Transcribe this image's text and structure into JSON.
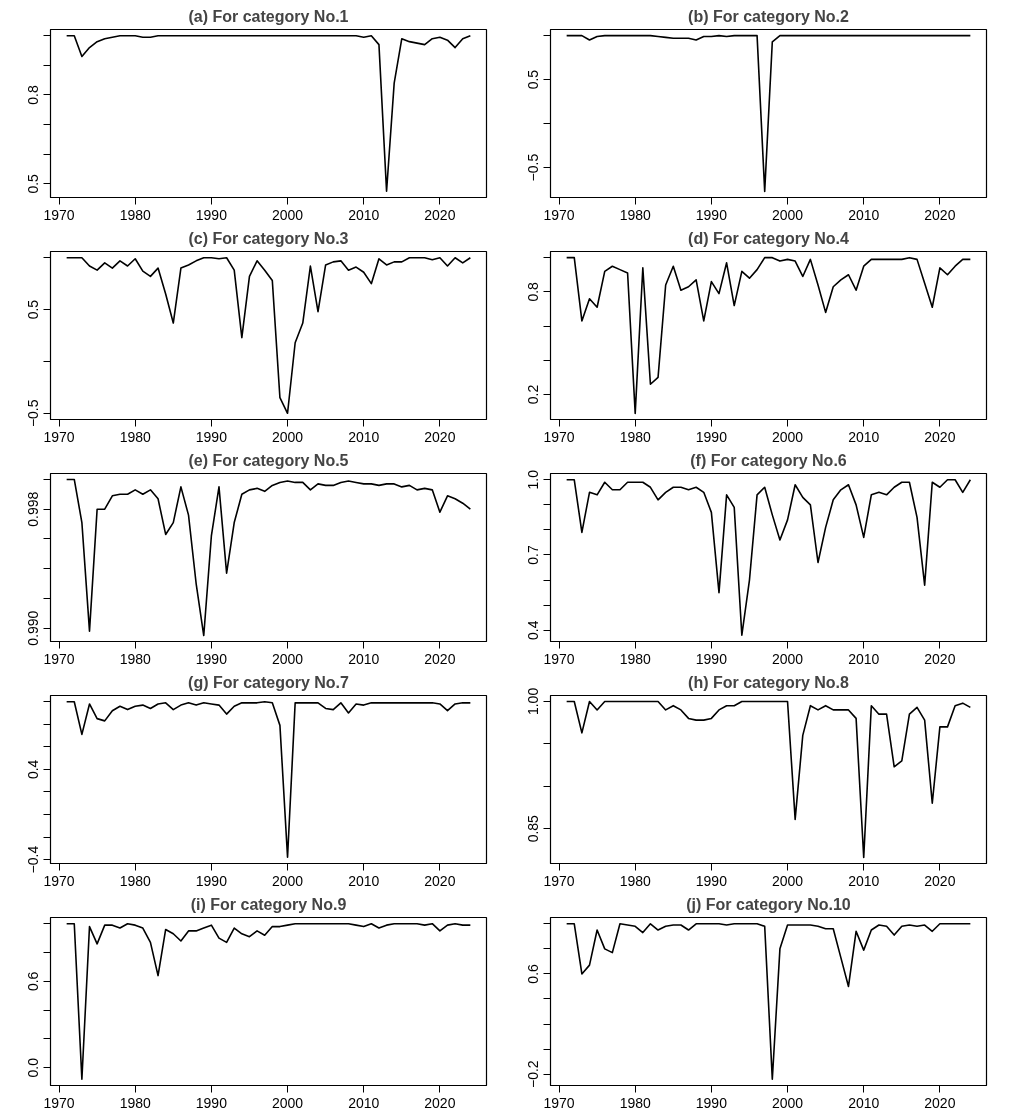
{
  "chart_data": [
    {
      "type": "line",
      "title": "(a) For category No.1",
      "xlim": [
        1968.88,
        2026.12
      ],
      "xticks": [
        1970,
        1980,
        1990,
        2000,
        2010,
        2020
      ],
      "ylim": [
        0.454,
        1.021
      ],
      "yticks": [
        0.5,
        {
          "value": 0.6,
          "label": null
        },
        {
          "value": 0.7,
          "label": null
        },
        0.8,
        {
          "value": 0.9,
          "label": null
        },
        {
          "value": 1.0,
          "label": null
        }
      ],
      "grid": false,
      "marker": "none",
      "line_style": "solid",
      "x": [
        1971,
        1972,
        1973,
        1974,
        1975,
        1976,
        1977,
        1978,
        1979,
        1980,
        1981,
        1982,
        1983,
        1984,
        1985,
        1986,
        1987,
        1988,
        1989,
        1990,
        1991,
        1992,
        1993,
        1994,
        1995,
        1996,
        1997,
        1998,
        1999,
        2000,
        2001,
        2002,
        2003,
        2004,
        2005,
        2006,
        2007,
        2008,
        2009,
        2010,
        2011,
        2012,
        2013,
        2014,
        2015,
        2016,
        2017,
        2018,
        2019,
        2020,
        2021,
        2022,
        2023,
        2024
      ],
      "series": [
        {
          "color": "#000000",
          "values": [
            1.0,
            1.0,
            0.93,
            0.96,
            0.98,
            0.99,
            0.995,
            1.0,
            1.0,
            1.0,
            0.995,
            0.995,
            1.0,
            1.0,
            1.0,
            1.0,
            1.0,
            1.0,
            1.0,
            1.0,
            1.0,
            1.0,
            1.0,
            1.0,
            1.0,
            1.0,
            1.0,
            1.0,
            1.0,
            1.0,
            1.0,
            1.0,
            1.0,
            1.0,
            1.0,
            1.0,
            1.0,
            1.0,
            1.0,
            0.995,
            1.0,
            0.97,
            0.475,
            0.84,
            0.99,
            0.98,
            0.975,
            0.97,
            0.99,
            0.995,
            0.985,
            0.96,
            0.99,
            1.0
          ]
        }
      ]
    },
    {
      "type": "line",
      "title": "(b) For category No.2",
      "xlim": [
        1968.88,
        2026.12
      ],
      "xticks": [
        1970,
        1980,
        1990,
        2000,
        2010,
        2020
      ],
      "ylim": [
        -0.84,
        1.07
      ],
      "yticks": [
        {
          "value": -0.5,
          "label": "−0.5"
        },
        {
          "value": 0,
          "label": null
        },
        0.5,
        {
          "value": 1.0,
          "label": null
        }
      ],
      "grid": false,
      "marker": "none",
      "line_style": "solid",
      "x": [
        1971,
        1972,
        1973,
        1974,
        1975,
        1976,
        1977,
        1978,
        1979,
        1980,
        1981,
        1982,
        1983,
        1984,
        1985,
        1986,
        1987,
        1988,
        1989,
        1990,
        1991,
        1992,
        1993,
        1994,
        1995,
        1996,
        1997,
        1998,
        1999,
        2000,
        2001,
        2002,
        2003,
        2004,
        2005,
        2006,
        2007,
        2008,
        2009,
        2010,
        2011,
        2012,
        2013,
        2014,
        2015,
        2016,
        2017,
        2018,
        2019,
        2020,
        2021,
        2022,
        2023,
        2024
      ],
      "series": [
        {
          "color": "#000000",
          "values": [
            1.0,
            1.0,
            1.0,
            0.95,
            0.99,
            1.0,
            1.0,
            1.0,
            1.0,
            1.0,
            1.0,
            1.0,
            0.99,
            0.98,
            0.97,
            0.97,
            0.97,
            0.95,
            0.99,
            0.99,
            1.0,
            0.99,
            1.0,
            1.0,
            1.0,
            1.0,
            -0.77,
            0.93,
            1.0,
            1.0,
            1.0,
            1.0,
            1.0,
            1.0,
            1.0,
            1.0,
            1.0,
            1.0,
            1.0,
            1.0,
            1.0,
            1.0,
            1.0,
            1.0,
            1.0,
            1.0,
            1.0,
            1.0,
            1.0,
            1.0,
            1.0,
            1.0,
            1.0,
            1.0
          ]
        }
      ]
    },
    {
      "type": "line",
      "title": "(c) For category No.3",
      "xlim": [
        1968.88,
        2026.12
      ],
      "xticks": [
        1970,
        1980,
        1990,
        2000,
        2010,
        2020
      ],
      "ylim": [
        -0.56,
        1.06
      ],
      "yticks": [
        {
          "value": -0.5,
          "label": "−0.5"
        },
        {
          "value": 0,
          "label": null
        },
        0.5,
        {
          "value": 1.0,
          "label": null
        }
      ],
      "grid": false,
      "marker": "none",
      "line_style": "solid",
      "x": [
        1971,
        1972,
        1973,
        1974,
        1975,
        1976,
        1977,
        1978,
        1979,
        1980,
        1981,
        1982,
        1983,
        1984,
        1985,
        1986,
        1987,
        1988,
        1989,
        1990,
        1991,
        1992,
        1993,
        1994,
        1995,
        1996,
        1997,
        1998,
        1999,
        2000,
        2001,
        2002,
        2003,
        2004,
        2005,
        2006,
        2007,
        2008,
        2009,
        2010,
        2011,
        2012,
        2013,
        2014,
        2015,
        2016,
        2017,
        2018,
        2019,
        2020,
        2021,
        2022,
        2023,
        2024
      ],
      "series": [
        {
          "color": "#000000",
          "values": [
            1.0,
            1.0,
            1.0,
            0.92,
            0.88,
            0.95,
            0.9,
            0.97,
            0.92,
            0.99,
            0.87,
            0.82,
            0.9,
            0.65,
            0.37,
            0.9,
            0.93,
            0.97,
            1.0,
            1.0,
            0.99,
            1.0,
            0.88,
            0.23,
            0.82,
            0.97,
            0.88,
            0.78,
            -0.35,
            -0.5,
            0.18,
            0.37,
            0.92,
            0.48,
            0.93,
            0.96,
            0.97,
            0.88,
            0.91,
            0.86,
            0.75,
            0.99,
            0.93,
            0.96,
            0.96,
            1.0,
            1.0,
            1.0,
            0.98,
            1.0,
            0.92,
            1.0,
            0.95,
            1.0
          ]
        }
      ]
    },
    {
      "type": "line",
      "title": "(d) For category No.4",
      "xlim": [
        1968.88,
        2026.12
      ],
      "xticks": [
        1970,
        1980,
        1990,
        2000,
        2010,
        2020
      ],
      "ylim": [
        0.054,
        1.036
      ],
      "yticks": [
        0.2,
        {
          "value": 0.4,
          "label": null
        },
        {
          "value": 0.6,
          "label": null
        },
        0.8,
        {
          "value": 1.0,
          "label": null
        }
      ],
      "grid": false,
      "marker": "none",
      "line_style": "solid",
      "x": [
        1971,
        1972,
        1973,
        1974,
        1975,
        1976,
        1977,
        1978,
        1979,
        1980,
        1981,
        1982,
        1983,
        1984,
        1985,
        1986,
        1987,
        1988,
        1989,
        1990,
        1991,
        1992,
        1993,
        1994,
        1995,
        1996,
        1997,
        1998,
        1999,
        2000,
        2001,
        2002,
        2003,
        2004,
        2005,
        2006,
        2007,
        2008,
        2009,
        2010,
        2011,
        2012,
        2013,
        2014,
        2015,
        2016,
        2017,
        2018,
        2019,
        2020,
        2021,
        2022,
        2023,
        2024
      ],
      "series": [
        {
          "color": "#000000",
          "values": [
            1.0,
            1.0,
            0.63,
            0.76,
            0.71,
            0.92,
            0.95,
            0.93,
            0.91,
            0.09,
            0.94,
            0.26,
            0.3,
            0.84,
            0.95,
            0.81,
            0.83,
            0.87,
            0.63,
            0.86,
            0.79,
            0.97,
            0.72,
            0.92,
            0.88,
            0.93,
            1.0,
            1.0,
            0.98,
            0.99,
            0.98,
            0.89,
            0.99,
            0.84,
            0.68,
            0.83,
            0.87,
            0.9,
            0.81,
            0.95,
            0.99,
            0.99,
            0.99,
            0.99,
            0.99,
            1.0,
            0.99,
            0.85,
            0.71,
            0.94,
            0.9,
            0.95,
            0.99,
            0.99
          ]
        }
      ]
    },
    {
      "type": "line",
      "title": "(e) For category No.5",
      "xlim": [
        1968.88,
        2026.12
      ],
      "xticks": [
        1970,
        1980,
        1990,
        2000,
        2010,
        2020
      ],
      "ylim": [
        0.9891,
        1.0004
      ],
      "yticks": [
        {
          "value": 0.99,
          "label": "0.990"
        },
        {
          "value": 0.992,
          "label": null
        },
        {
          "value": 0.994,
          "label": null
        },
        {
          "value": 0.996,
          "label": null
        },
        0.998,
        {
          "value": 1.0,
          "label": null
        }
      ],
      "grid": false,
      "marker": "none",
      "line_style": "solid",
      "x": [
        1971,
        1972,
        1973,
        1974,
        1975,
        1976,
        1977,
        1978,
        1979,
        1980,
        1981,
        1982,
        1983,
        1984,
        1985,
        1986,
        1987,
        1988,
        1989,
        1990,
        1991,
        1992,
        1993,
        1994,
        1995,
        1996,
        1997,
        1998,
        1999,
        2000,
        2001,
        2002,
        2003,
        2004,
        2005,
        2006,
        2007,
        2008,
        2009,
        2010,
        2011,
        2012,
        2013,
        2014,
        2015,
        2016,
        2017,
        2018,
        2019,
        2020,
        2021,
        2022,
        2023,
        2024
      ],
      "series": [
        {
          "color": "#000000",
          "values": [
            1.0,
            1.0,
            0.9971,
            0.9898,
            0.998,
            0.998,
            0.9989,
            0.999,
            0.999,
            0.9993,
            0.999,
            0.9993,
            0.9987,
            0.9963,
            0.9971,
            0.9995,
            0.9976,
            0.993,
            0.9895,
            0.9962,
            0.9995,
            0.9937,
            0.9971,
            0.999,
            0.9993,
            0.9994,
            0.9992,
            0.9996,
            0.9998,
            0.9999,
            0.9998,
            0.9998,
            0.9993,
            0.9997,
            0.9996,
            0.9996,
            0.9998,
            0.9999,
            0.9998,
            0.9997,
            0.9997,
            0.9996,
            0.9997,
            0.9997,
            0.9995,
            0.9996,
            0.9993,
            0.9994,
            0.9993,
            0.9978,
            0.9989,
            0.9987,
            0.9984,
            0.998
          ]
        }
      ]
    },
    {
      "type": "line",
      "title": "(f) For category No.6",
      "xlim": [
        1968.88,
        2026.12
      ],
      "xticks": [
        1970,
        1980,
        1990,
        2000,
        2010,
        2020
      ],
      "ylim": [
        0.355,
        1.025
      ],
      "yticks": [
        0.4,
        {
          "value": 0.5,
          "label": null
        },
        {
          "value": 0.6,
          "label": null
        },
        0.7,
        {
          "value": 0.8,
          "label": null
        },
        {
          "value": 0.9,
          "label": null
        },
        {
          "value": 1.0,
          "label": "1.0"
        }
      ],
      "grid": false,
      "marker": "none",
      "line_style": "solid",
      "x": [
        1971,
        1972,
        1973,
        1974,
        1975,
        1976,
        1977,
        1978,
        1979,
        1980,
        1981,
        1982,
        1983,
        1984,
        1985,
        1986,
        1987,
        1988,
        1989,
        1990,
        1991,
        1992,
        1993,
        1994,
        1995,
        1996,
        1997,
        1998,
        1999,
        2000,
        2001,
        2002,
        2003,
        2004,
        2005,
        2006,
        2007,
        2008,
        2009,
        2010,
        2011,
        2012,
        2013,
        2014,
        2015,
        2016,
        2017,
        2018,
        2019,
        2020,
        2021,
        2022,
        2023,
        2024
      ],
      "series": [
        {
          "color": "#000000",
          "values": [
            1.0,
            1.0,
            0.79,
            0.95,
            0.94,
            0.99,
            0.96,
            0.96,
            0.99,
            0.99,
            0.99,
            0.97,
            0.92,
            0.95,
            0.97,
            0.97,
            0.96,
            0.97,
            0.95,
            0.87,
            0.55,
            0.94,
            0.89,
            0.38,
            0.6,
            0.94,
            0.97,
            0.86,
            0.76,
            0.84,
            0.98,
            0.93,
            0.9,
            0.67,
            0.81,
            0.92,
            0.96,
            0.98,
            0.9,
            0.77,
            0.94,
            0.95,
            0.94,
            0.97,
            0.99,
            0.99,
            0.85,
            0.58,
            0.99,
            0.97,
            1.0,
            1.0,
            0.95,
            1.0
          ]
        }
      ]
    },
    {
      "type": "line",
      "title": "(g) For category No.7",
      "xlim": [
        1968.88,
        2026.12
      ],
      "xticks": [
        1970,
        1980,
        1990,
        2000,
        2010,
        2020
      ],
      "ylim": [
        -0.435,
        1.055
      ],
      "yticks": [
        {
          "value": -0.4,
          "label": "−0.4"
        },
        {
          "value": -0.2,
          "label": null
        },
        {
          "value": 0,
          "label": null
        },
        {
          "value": 0.2,
          "label": null
        },
        0.4,
        {
          "value": 0.6,
          "label": null
        },
        {
          "value": 0.8,
          "label": null
        },
        {
          "value": 1.0,
          "label": null
        }
      ],
      "grid": false,
      "marker": "none",
      "line_style": "solid",
      "x": [
        1971,
        1972,
        1973,
        1974,
        1975,
        1976,
        1977,
        1978,
        1979,
        1980,
        1981,
        1982,
        1983,
        1984,
        1985,
        1986,
        1987,
        1988,
        1989,
        1990,
        1991,
        1992,
        1993,
        1994,
        1995,
        1996,
        1997,
        1998,
        1999,
        2000,
        2001,
        2002,
        2003,
        2004,
        2005,
        2006,
        2007,
        2008,
        2009,
        2010,
        2011,
        2012,
        2013,
        2014,
        2015,
        2016,
        2017,
        2018,
        2019,
        2020,
        2021,
        2022,
        2023,
        2024
      ],
      "series": [
        {
          "color": "#000000",
          "values": [
            1.0,
            1.0,
            0.71,
            0.98,
            0.85,
            0.83,
            0.92,
            0.96,
            0.93,
            0.96,
            0.97,
            0.94,
            0.98,
            0.99,
            0.93,
            0.97,
            0.99,
            0.97,
            0.99,
            0.98,
            0.97,
            0.89,
            0.96,
            0.99,
            0.99,
            0.99,
            1.0,
            0.99,
            0.79,
            -0.38,
            0.99,
            0.99,
            0.99,
            0.99,
            0.94,
            0.93,
            0.99,
            0.9,
            0.98,
            0.97,
            0.99,
            0.99,
            0.99,
            0.99,
            0.99,
            0.99,
            0.99,
            0.99,
            0.99,
            0.98,
            0.92,
            0.98,
            0.99,
            0.99
          ]
        }
      ]
    },
    {
      "type": "line",
      "title": "(h) For category No.8",
      "xlim": [
        1968.88,
        2026.12
      ],
      "xticks": [
        1970,
        1980,
        1990,
        2000,
        2010,
        2020
      ],
      "ylim": [
        0.809,
        1.007
      ],
      "yticks": [
        0.85,
        {
          "value": 0.9,
          "label": null
        },
        {
          "value": 0.95,
          "label": null
        },
        {
          "value": 1.0,
          "label": "1.00"
        }
      ],
      "grid": false,
      "marker": "none",
      "line_style": "solid",
      "x": [
        1971,
        1972,
        1973,
        1974,
        1975,
        1976,
        1977,
        1978,
        1979,
        1980,
        1981,
        1982,
        1983,
        1984,
        1985,
        1986,
        1987,
        1988,
        1989,
        1990,
        1991,
        1992,
        1993,
        1994,
        1995,
        1996,
        1997,
        1998,
        1999,
        2000,
        2001,
        2002,
        2003,
        2004,
        2005,
        2006,
        2007,
        2008,
        2009,
        2010,
        2011,
        2012,
        2013,
        2014,
        2015,
        2016,
        2017,
        2018,
        2019,
        2020,
        2021,
        2022,
        2023,
        2024
      ],
      "series": [
        {
          "color": "#000000",
          "values": [
            1.0,
            1.0,
            0.963,
            1.0,
            0.99,
            1.0,
            1.0,
            1.0,
            1.0,
            1.0,
            1.0,
            1.0,
            1.0,
            0.99,
            0.995,
            0.99,
            0.98,
            0.978,
            0.978,
            0.98,
            0.99,
            0.995,
            0.995,
            1.0,
            1.0,
            1.0,
            1.0,
            1.0,
            1.0,
            1.0,
            0.861,
            0.96,
            0.995,
            0.99,
            0.995,
            0.99,
            0.99,
            0.99,
            0.98,
            0.816,
            0.995,
            0.985,
            0.985,
            0.923,
            0.93,
            0.985,
            0.993,
            0.978,
            0.88,
            0.97,
            0.97,
            0.995,
            0.998,
            0.993
          ]
        }
      ]
    },
    {
      "type": "line",
      "title": "(i) For category No.9",
      "xlim": [
        1968.88,
        2026.12
      ],
      "xticks": [
        1970,
        1980,
        1990,
        2000,
        2010,
        2020
      ],
      "ylim": [
        -0.123,
        1.043
      ],
      "yticks": [
        {
          "value": 0,
          "label": "0.0"
        },
        {
          "value": 0.2,
          "label": null
        },
        {
          "value": 0.4,
          "label": null
        },
        0.6,
        {
          "value": 0.8,
          "label": null
        },
        {
          "value": 1.0,
          "label": null
        }
      ],
      "grid": false,
      "marker": "none",
      "line_style": "solid",
      "x": [
        1971,
        1972,
        1973,
        1974,
        1975,
        1976,
        1977,
        1978,
        1979,
        1980,
        1981,
        1982,
        1983,
        1984,
        1985,
        1986,
        1987,
        1988,
        1989,
        1990,
        1991,
        1992,
        1993,
        1994,
        1995,
        1996,
        1997,
        1998,
        1999,
        2000,
        2001,
        2002,
        2003,
        2004,
        2005,
        2006,
        2007,
        2008,
        2009,
        2010,
        2011,
        2012,
        2013,
        2014,
        2015,
        2016,
        2017,
        2018,
        2019,
        2020,
        2021,
        2022,
        2023,
        2024
      ],
      "series": [
        {
          "color": "#000000",
          "values": [
            1.0,
            1.0,
            -0.08,
            0.98,
            0.86,
            0.99,
            0.99,
            0.97,
            1.0,
            0.99,
            0.97,
            0.87,
            0.64,
            0.96,
            0.93,
            0.88,
            0.95,
            0.95,
            0.97,
            0.99,
            0.9,
            0.87,
            0.97,
            0.93,
            0.91,
            0.95,
            0.92,
            0.98,
            0.98,
            0.99,
            1.0,
            1.0,
            1.0,
            1.0,
            1.0,
            1.0,
            1.0,
            1.0,
            0.99,
            0.98,
            1.0,
            0.97,
            0.99,
            1.0,
            1.0,
            1.0,
            1.0,
            0.99,
            1.0,
            0.95,
            0.99,
            1.0,
            0.99,
            0.99
          ]
        }
      ]
    },
    {
      "type": "line",
      "title": "(j) For category No.10",
      "xlim": [
        1968.88,
        2026.12
      ],
      "xticks": [
        1970,
        1980,
        1990,
        2000,
        2010,
        2020
      ],
      "ylim": [
        -0.29,
        1.05
      ],
      "yticks": [
        {
          "value": -0.2,
          "label": "−0.2"
        },
        {
          "value": 0,
          "label": null
        },
        {
          "value": 0.2,
          "label": null
        },
        {
          "value": 0.4,
          "label": null
        },
        0.6,
        {
          "value": 0.8,
          "label": null
        },
        {
          "value": 1.0,
          "label": null
        }
      ],
      "grid": false,
      "marker": "none",
      "line_style": "solid",
      "x": [
        1971,
        1972,
        1973,
        1974,
        1975,
        1976,
        1977,
        1978,
        1979,
        1980,
        1981,
        1982,
        1983,
        1984,
        1985,
        1986,
        1987,
        1988,
        1989,
        1990,
        1991,
        1992,
        1993,
        1994,
        1995,
        1996,
        1997,
        1998,
        1999,
        2000,
        2001,
        2002,
        2003,
        2004,
        2005,
        2006,
        2007,
        2008,
        2009,
        2010,
        2011,
        2012,
        2013,
        2014,
        2015,
        2016,
        2017,
        2018,
        2019,
        2020,
        2021,
        2022,
        2023,
        2024
      ],
      "series": [
        {
          "color": "#000000",
          "values": [
            1.0,
            1.0,
            0.6,
            0.67,
            0.95,
            0.8,
            0.77,
            1.0,
            0.99,
            0.98,
            0.93,
            1.0,
            0.95,
            0.98,
            0.99,
            0.99,
            0.95,
            1.0,
            1.0,
            1.0,
            1.0,
            0.99,
            1.0,
            1.0,
            1.0,
            1.0,
            0.98,
            -0.24,
            0.8,
            0.99,
            0.99,
            0.99,
            0.99,
            0.98,
            0.96,
            0.96,
            0.73,
            0.5,
            0.94,
            0.79,
            0.95,
            0.99,
            0.98,
            0.91,
            0.98,
            0.99,
            0.98,
            0.99,
            0.94,
            1.0,
            1.0,
            1.0,
            1.0,
            1.0
          ]
        }
      ]
    }
  ]
}
